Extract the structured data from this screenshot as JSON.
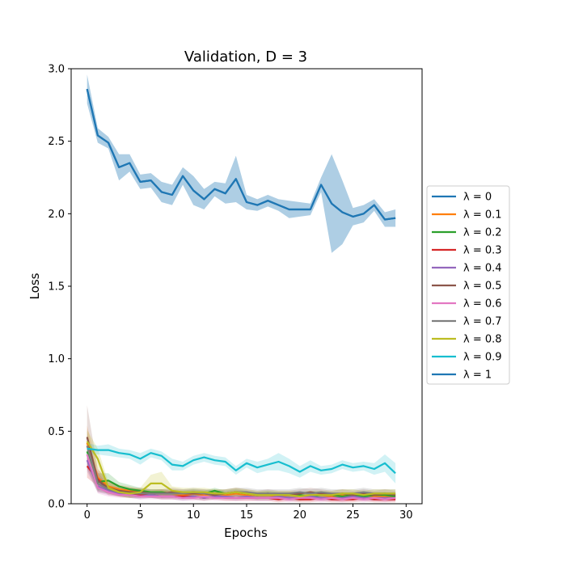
{
  "chart_data": {
    "type": "line",
    "title": "Validation, D = 3",
    "xlabel": "Epochs",
    "ylabel": "Loss",
    "xlim": [
      -1.5,
      31.5
    ],
    "ylim": [
      0.0,
      3.0
    ],
    "xticks": [
      0,
      5,
      10,
      15,
      20,
      25,
      30
    ],
    "yticks": [
      0.0,
      0.5,
      1.0,
      1.5,
      2.0,
      2.5,
      3.0
    ],
    "legend_position": "right",
    "x": [
      0,
      1,
      2,
      3,
      4,
      5,
      6,
      7,
      8,
      9,
      10,
      11,
      12,
      13,
      14,
      15,
      16,
      17,
      18,
      19,
      20,
      21,
      22,
      23,
      24,
      25,
      26,
      27,
      28,
      29
    ],
    "series": [
      {
        "name": "λ = 0",
        "color": "#1f77b4",
        "values": [
          2.86,
          2.54,
          2.49,
          2.32,
          2.35,
          2.22,
          2.23,
          2.15,
          2.13,
          2.26,
          2.16,
          2.1,
          2.17,
          2.14,
          2.24,
          2.08,
          2.06,
          2.09,
          2.06,
          2.03,
          2.03,
          2.03,
          2.2,
          2.07,
          2.01,
          1.98,
          2.0,
          2.06,
          1.96,
          1.97
        ],
        "band": [
          0.1,
          0.05,
          0.04,
          0.09,
          0.06,
          0.05,
          0.05,
          0.07,
          0.07,
          0.06,
          0.1,
          0.07,
          0.05,
          0.07,
          0.16,
          0.05,
          0.04,
          0.04,
          0.04,
          0.06,
          0.05,
          0.04,
          0.05,
          0.34,
          0.22,
          0.06,
          0.06,
          0.04,
          0.05,
          0.06
        ]
      },
      {
        "name": "λ = 0.1",
        "color": "#ff7f0e",
        "values": [
          0.42,
          0.18,
          0.12,
          0.1,
          0.09,
          0.08,
          0.07,
          0.08,
          0.07,
          0.06,
          0.07,
          0.06,
          0.07,
          0.06,
          0.07,
          0.06,
          0.06,
          0.06,
          0.05,
          0.06,
          0.05,
          0.06,
          0.06,
          0.05,
          0.06,
          0.05,
          0.06,
          0.05,
          0.05,
          0.05
        ],
        "band": [
          0.12,
          0.06,
          0.04,
          0.03,
          0.03,
          0.02,
          0.02,
          0.02,
          0.02,
          0.02,
          0.02,
          0.02,
          0.02,
          0.02,
          0.02,
          0.02,
          0.02,
          0.02,
          0.02,
          0.02,
          0.02,
          0.02,
          0.02,
          0.02,
          0.02,
          0.02,
          0.02,
          0.02,
          0.02,
          0.02
        ]
      },
      {
        "name": "λ = 0.2",
        "color": "#2ca02c",
        "values": [
          0.36,
          0.15,
          0.16,
          0.12,
          0.1,
          0.09,
          0.08,
          0.08,
          0.07,
          0.07,
          0.08,
          0.07,
          0.09,
          0.07,
          0.08,
          0.07,
          0.06,
          0.07,
          0.06,
          0.06,
          0.06,
          0.05,
          0.06,
          0.06,
          0.05,
          0.06,
          0.05,
          0.06,
          0.06,
          0.05
        ],
        "band": [
          0.1,
          0.06,
          0.05,
          0.03,
          0.03,
          0.02,
          0.02,
          0.02,
          0.02,
          0.02,
          0.02,
          0.02,
          0.02,
          0.02,
          0.02,
          0.02,
          0.02,
          0.02,
          0.02,
          0.02,
          0.02,
          0.02,
          0.02,
          0.02,
          0.02,
          0.02,
          0.02,
          0.02,
          0.02,
          0.02
        ]
      },
      {
        "name": "λ = 0.3",
        "color": "#d62728",
        "values": [
          0.26,
          0.17,
          0.09,
          0.07,
          0.06,
          0.06,
          0.06,
          0.05,
          0.05,
          0.05,
          0.05,
          0.04,
          0.05,
          0.04,
          0.04,
          0.04,
          0.04,
          0.04,
          0.03,
          0.04,
          0.03,
          0.03,
          0.04,
          0.03,
          0.03,
          0.03,
          0.04,
          0.03,
          0.03,
          0.03
        ],
        "band": [
          0.08,
          0.05,
          0.03,
          0.02,
          0.02,
          0.02,
          0.02,
          0.02,
          0.02,
          0.02,
          0.02,
          0.02,
          0.02,
          0.02,
          0.02,
          0.02,
          0.02,
          0.02,
          0.02,
          0.02,
          0.02,
          0.02,
          0.02,
          0.02,
          0.02,
          0.02,
          0.02,
          0.02,
          0.02,
          0.02
        ]
      },
      {
        "name": "λ = 0.4",
        "color": "#9467bd",
        "values": [
          0.3,
          0.12,
          0.09,
          0.07,
          0.06,
          0.05,
          0.06,
          0.05,
          0.05,
          0.04,
          0.05,
          0.04,
          0.05,
          0.05,
          0.04,
          0.05,
          0.04,
          0.04,
          0.05,
          0.04,
          0.04,
          0.05,
          0.04,
          0.04,
          0.04,
          0.05,
          0.04,
          0.04,
          0.04,
          0.04
        ],
        "band": [
          0.08,
          0.04,
          0.03,
          0.02,
          0.02,
          0.02,
          0.02,
          0.02,
          0.02,
          0.02,
          0.02,
          0.02,
          0.02,
          0.02,
          0.02,
          0.02,
          0.02,
          0.02,
          0.02,
          0.02,
          0.02,
          0.02,
          0.02,
          0.02,
          0.02,
          0.02,
          0.02,
          0.02,
          0.02,
          0.02
        ]
      },
      {
        "name": "λ = 0.5",
        "color": "#8c564b",
        "values": [
          0.46,
          0.16,
          0.11,
          0.09,
          0.08,
          0.08,
          0.07,
          0.07,
          0.08,
          0.07,
          0.07,
          0.07,
          0.06,
          0.07,
          0.08,
          0.07,
          0.06,
          0.07,
          0.06,
          0.06,
          0.07,
          0.08,
          0.07,
          0.06,
          0.07,
          0.06,
          0.07,
          0.06,
          0.07,
          0.06
        ],
        "band": [
          0.22,
          0.08,
          0.04,
          0.03,
          0.03,
          0.03,
          0.03,
          0.03,
          0.03,
          0.03,
          0.03,
          0.03,
          0.03,
          0.03,
          0.03,
          0.03,
          0.03,
          0.03,
          0.03,
          0.03,
          0.03,
          0.03,
          0.03,
          0.03,
          0.03,
          0.03,
          0.03,
          0.03,
          0.03,
          0.03
        ]
      },
      {
        "name": "λ = 0.6",
        "color": "#e377c2",
        "values": [
          0.34,
          0.11,
          0.08,
          0.06,
          0.06,
          0.05,
          0.05,
          0.05,
          0.05,
          0.04,
          0.04,
          0.05,
          0.04,
          0.04,
          0.04,
          0.04,
          0.04,
          0.04,
          0.04,
          0.03,
          0.04,
          0.04,
          0.03,
          0.04,
          0.03,
          0.04,
          0.03,
          0.04,
          0.03,
          0.04
        ],
        "band": [
          0.09,
          0.04,
          0.03,
          0.02,
          0.02,
          0.02,
          0.02,
          0.02,
          0.02,
          0.02,
          0.02,
          0.02,
          0.02,
          0.02,
          0.02,
          0.02,
          0.02,
          0.02,
          0.02,
          0.02,
          0.02,
          0.02,
          0.02,
          0.02,
          0.02,
          0.02,
          0.02,
          0.02,
          0.02,
          0.02
        ]
      },
      {
        "name": "λ = 0.7",
        "color": "#7f7f7f",
        "values": [
          0.4,
          0.14,
          0.1,
          0.08,
          0.07,
          0.07,
          0.07,
          0.07,
          0.07,
          0.07,
          0.08,
          0.07,
          0.07,
          0.07,
          0.08,
          0.08,
          0.07,
          0.07,
          0.07,
          0.07,
          0.08,
          0.07,
          0.08,
          0.07,
          0.07,
          0.07,
          0.08,
          0.07,
          0.07,
          0.07
        ],
        "band": [
          0.1,
          0.05,
          0.03,
          0.03,
          0.03,
          0.03,
          0.03,
          0.03,
          0.03,
          0.03,
          0.03,
          0.03,
          0.03,
          0.03,
          0.03,
          0.03,
          0.03,
          0.03,
          0.03,
          0.03,
          0.03,
          0.03,
          0.03,
          0.03,
          0.03,
          0.03,
          0.03,
          0.03,
          0.03,
          0.03
        ]
      },
      {
        "name": "λ = 0.8",
        "color": "#bcbd22",
        "values": [
          0.43,
          0.31,
          0.11,
          0.08,
          0.07,
          0.08,
          0.14,
          0.14,
          0.09,
          0.08,
          0.08,
          0.08,
          0.07,
          0.07,
          0.08,
          0.07,
          0.06,
          0.06,
          0.06,
          0.06,
          0.05,
          0.06,
          0.06,
          0.06,
          0.07,
          0.07,
          0.06,
          0.07,
          0.07,
          0.07
        ],
        "band": [
          0.08,
          0.07,
          0.04,
          0.03,
          0.03,
          0.03,
          0.06,
          0.08,
          0.03,
          0.03,
          0.03,
          0.03,
          0.03,
          0.03,
          0.03,
          0.03,
          0.03,
          0.03,
          0.03,
          0.03,
          0.03,
          0.03,
          0.03,
          0.03,
          0.03,
          0.03,
          0.03,
          0.03,
          0.03,
          0.03
        ]
      },
      {
        "name": "λ = 0.9",
        "color": "#17becf",
        "values": [
          0.38,
          0.37,
          0.37,
          0.35,
          0.34,
          0.31,
          0.35,
          0.33,
          0.27,
          0.26,
          0.3,
          0.32,
          0.3,
          0.29,
          0.23,
          0.28,
          0.25,
          0.27,
          0.29,
          0.26,
          0.22,
          0.26,
          0.23,
          0.24,
          0.27,
          0.25,
          0.26,
          0.24,
          0.28,
          0.21
        ],
        "band": [
          0.04,
          0.03,
          0.04,
          0.03,
          0.03,
          0.04,
          0.03,
          0.03,
          0.04,
          0.03,
          0.03,
          0.03,
          0.03,
          0.03,
          0.03,
          0.03,
          0.04,
          0.04,
          0.06,
          0.05,
          0.04,
          0.04,
          0.03,
          0.03,
          0.03,
          0.03,
          0.03,
          0.04,
          0.06,
          0.07
        ]
      },
      {
        "name": "λ = 1",
        "color": "#1f77b4",
        "values": [
          2.86,
          2.54,
          2.49,
          2.32,
          2.35,
          2.22,
          2.23,
          2.15,
          2.13,
          2.26,
          2.16,
          2.1,
          2.17,
          2.14,
          2.24,
          2.08,
          2.06,
          2.09,
          2.06,
          2.03,
          2.03,
          2.03,
          2.2,
          2.07,
          2.01,
          1.98,
          2.0,
          2.06,
          1.96,
          1.97
        ],
        "band": [
          0.1,
          0.05,
          0.04,
          0.09,
          0.06,
          0.05,
          0.05,
          0.07,
          0.07,
          0.06,
          0.1,
          0.07,
          0.05,
          0.07,
          0.16,
          0.05,
          0.04,
          0.04,
          0.04,
          0.06,
          0.05,
          0.04,
          0.05,
          0.34,
          0.22,
          0.06,
          0.06,
          0.04,
          0.05,
          0.06
        ]
      }
    ]
  }
}
